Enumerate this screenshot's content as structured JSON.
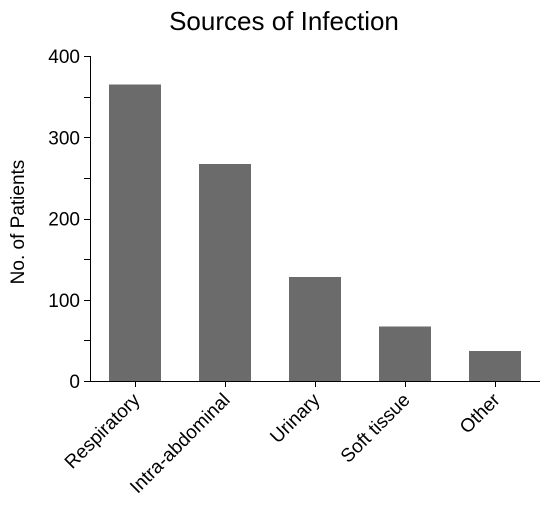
{
  "chart_data": {
    "type": "bar",
    "title": "Sources of Infection",
    "xlabel": "",
    "ylabel": "No. of Patients",
    "categories": [
      "Respiratory",
      "Intra-abdominal",
      "Urinary",
      "Soft tissue",
      "Other"
    ],
    "values": [
      365,
      267,
      128,
      67,
      37
    ],
    "ylim": [
      0,
      400
    ],
    "yticks": [
      0,
      50,
      100,
      150,
      200,
      250,
      300,
      350,
      400
    ],
    "grid": false,
    "legend": "none",
    "bar_color": "#6b6b6b"
  }
}
